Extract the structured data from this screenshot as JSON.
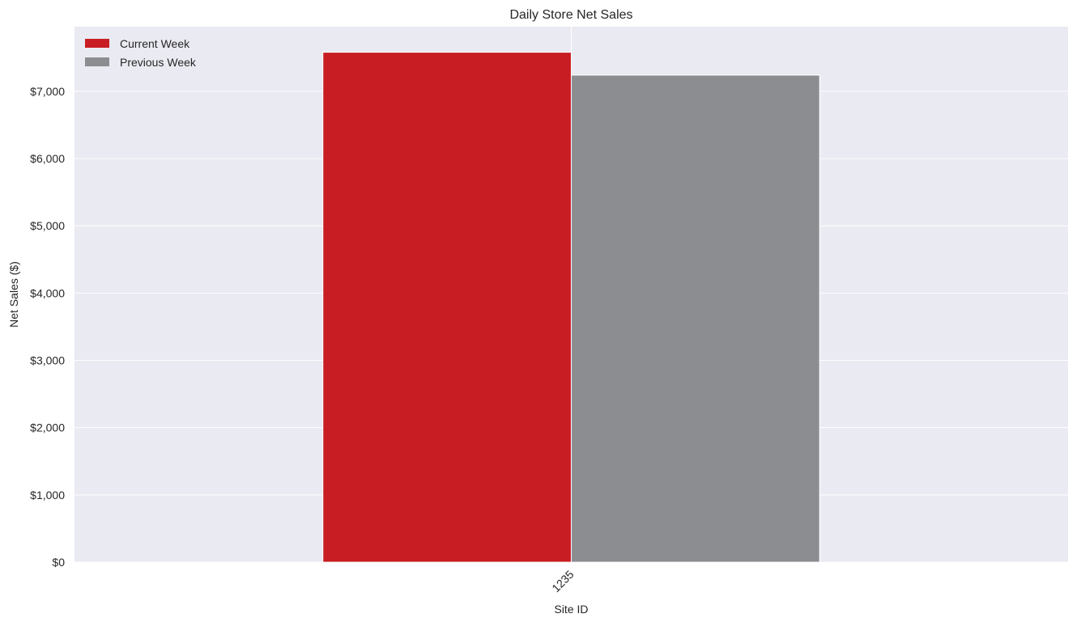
{
  "chart_data": {
    "type": "bar",
    "title": "Daily Store Net Sales",
    "xlabel": "Site ID",
    "ylabel": "Net Sales ($)",
    "categories": [
      "1235"
    ],
    "series": [
      {
        "name": "Current Week",
        "values": [
          7580
        ],
        "color": "#c81e23"
      },
      {
        "name": "Previous Week",
        "values": [
          7240
        ],
        "color": "#8c8d91"
      }
    ],
    "ylim": [
      0,
      7960
    ],
    "yticks": [
      0,
      1000,
      2000,
      3000,
      4000,
      5000,
      6000,
      7000
    ],
    "ytick_labels": [
      "$0",
      "$1,000",
      "$2,000",
      "$3,000",
      "$4,000",
      "$5,000",
      "$6,000",
      "$7,000"
    ],
    "grid": true,
    "legend_position": "top-left",
    "background_color": "#eaeaf2"
  }
}
